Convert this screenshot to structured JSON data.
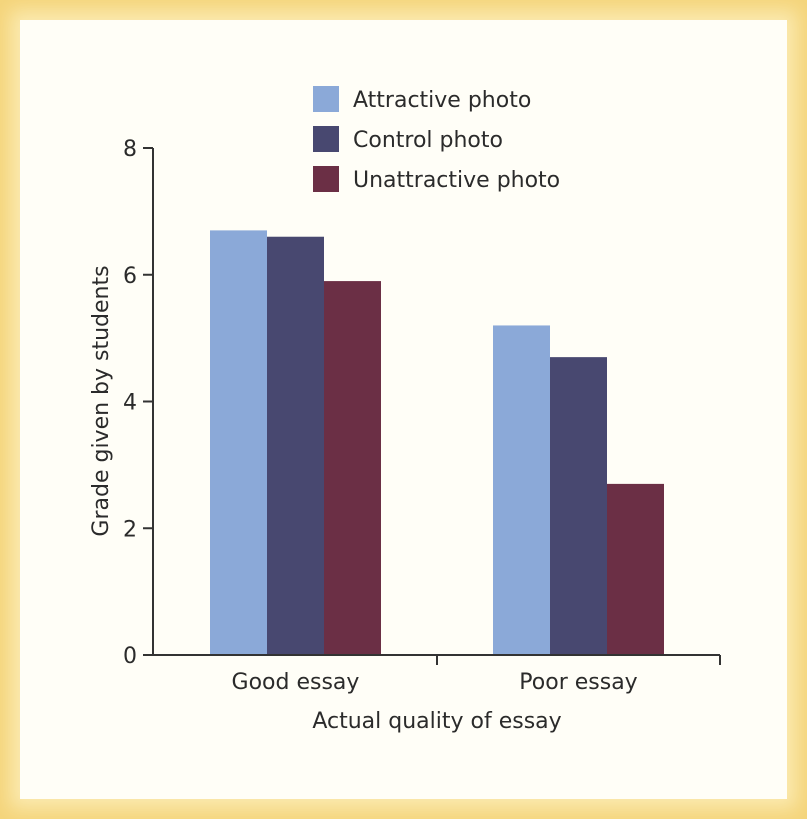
{
  "chart_data": {
    "type": "bar",
    "categories": [
      "Good essay",
      "Poor essay"
    ],
    "series": [
      {
        "name": "Attractive photo",
        "values": [
          6.7,
          5.2
        ],
        "color": "#8ba9d8"
      },
      {
        "name": "Control photo",
        "values": [
          6.6,
          4.7
        ],
        "color": "#484870"
      },
      {
        "name": "Unattractive photo",
        "values": [
          5.9,
          2.7
        ],
        "color": "#6b2f45"
      }
    ],
    "title": "",
    "xlabel": "Actual quality of essay",
    "ylabel": "Grade given by students",
    "ylim": [
      0,
      8
    ],
    "yticks": [
      0,
      2,
      4,
      6,
      8
    ],
    "grid": false,
    "legend_position": "top-center"
  },
  "colors": {
    "frame": "#f4d47a",
    "background": "#fffef7",
    "axis": "#333333"
  }
}
